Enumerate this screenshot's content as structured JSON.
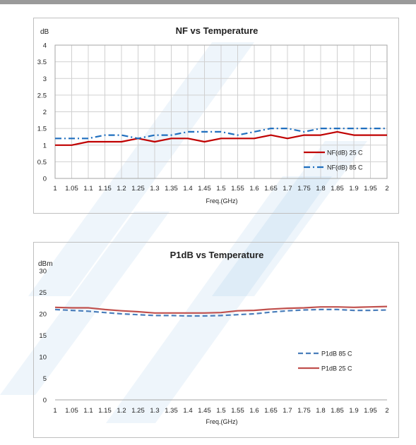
{
  "chart_data": [
    {
      "type": "line",
      "title": "NF vs Temperature",
      "ylabel": "dB",
      "xlabel": "Freq.(GHz)",
      "ylim": [
        0,
        4
      ],
      "yticks": [
        "0",
        "0.5",
        "1",
        "1.5",
        "2",
        "2.5",
        "3",
        "3.5",
        "4"
      ],
      "x": [
        "1",
        "1.05",
        "1.1",
        "1.15",
        "1.2",
        "1.25",
        "1.3",
        "1.35",
        "1.4",
        "1.45",
        "1.5",
        "1.55",
        "1.6",
        "1.65",
        "1.7",
        "1.75",
        "1.8",
        "1.85",
        "1.9",
        "1.95",
        "2"
      ],
      "grid": true,
      "legend_position": "bottom-right",
      "series": [
        {
          "name": "NF(dB) 25 C",
          "color": "#c00000",
          "style": "solid",
          "values": [
            1.0,
            1.0,
            1.1,
            1.1,
            1.1,
            1.2,
            1.1,
            1.2,
            1.2,
            1.1,
            1.2,
            1.2,
            1.2,
            1.3,
            1.2,
            1.3,
            1.3,
            1.4,
            1.3,
            1.3,
            1.3
          ]
        },
        {
          "name": "NF(dB) 85 C",
          "color": "#1f6fbf",
          "style": "dashdot",
          "values": [
            1.2,
            1.2,
            1.2,
            1.3,
            1.3,
            1.2,
            1.3,
            1.3,
            1.4,
            1.4,
            1.4,
            1.3,
            1.4,
            1.5,
            1.5,
            1.4,
            1.5,
            1.5,
            1.5,
            1.5,
            1.5
          ]
        }
      ]
    },
    {
      "type": "line",
      "title": "P1dB vs Temperature",
      "ylabel": "dBm",
      "xlabel": "Freq.(GHz)",
      "ylim": [
        0,
        30
      ],
      "yticks": [
        "0",
        "5",
        "10",
        "15",
        "20",
        "25",
        "30"
      ],
      "x": [
        "1",
        "1.05",
        "1.1",
        "1.15",
        "1.2",
        "1.25",
        "1.3",
        "1.35",
        "1.4",
        "1.45",
        "1.5",
        "1.55",
        "1.6",
        "1.65",
        "1.7",
        "1.75",
        "1.8",
        "1.85",
        "1.9",
        "1.95",
        "2"
      ],
      "grid": false,
      "legend_position": "right",
      "series": [
        {
          "name": "P1dB 85 C",
          "color": "#4a7ebb",
          "style": "dashed",
          "values": [
            21.0,
            20.8,
            20.6,
            20.3,
            20.0,
            19.8,
            19.6,
            19.6,
            19.5,
            19.5,
            19.6,
            19.8,
            20.0,
            20.4,
            20.7,
            20.9,
            21.0,
            21.0,
            20.8,
            20.8,
            20.9
          ]
        },
        {
          "name": "P1dB 25 C",
          "color": "#c0504d",
          "style": "solid",
          "values": [
            21.5,
            21.4,
            21.4,
            21.0,
            20.7,
            20.5,
            20.2,
            20.2,
            20.2,
            20.2,
            20.3,
            20.7,
            20.8,
            21.1,
            21.3,
            21.4,
            21.6,
            21.6,
            21.5,
            21.6,
            21.7
          ]
        }
      ]
    }
  ],
  "colors": {
    "watermark": "#4a90d9"
  }
}
